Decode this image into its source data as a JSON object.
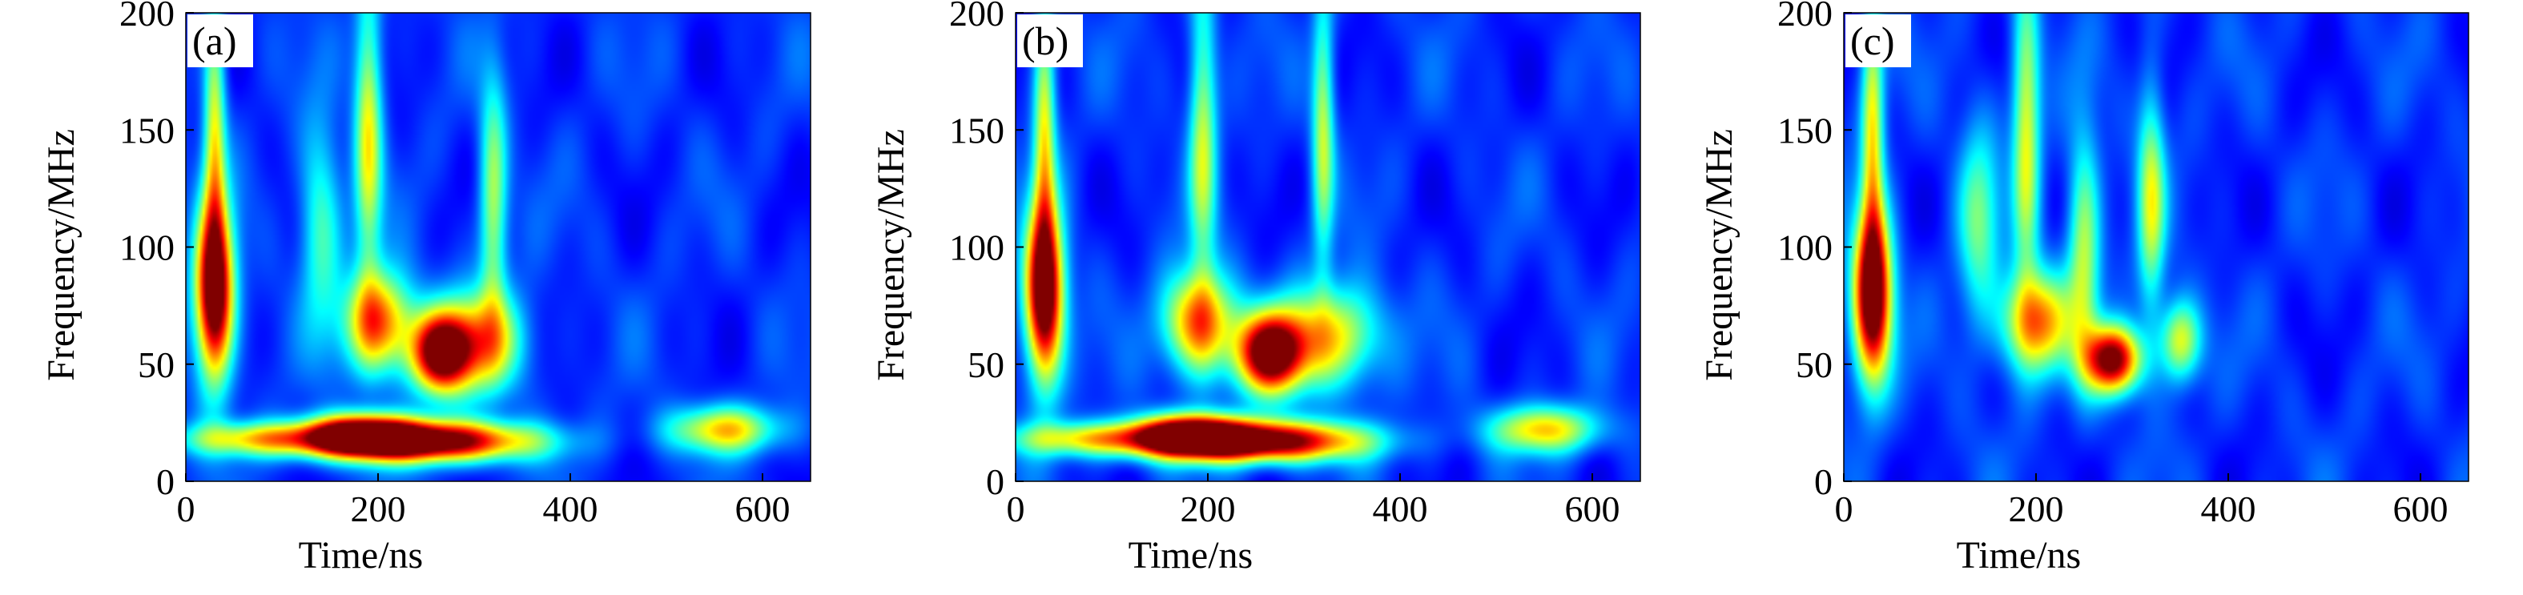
{
  "chart_data": [
    {
      "type": "heatmap",
      "panel_label": "(a)",
      "xlabel": "Time/ns",
      "ylabel": "Frequency/MHz",
      "xlim": [
        0,
        650
      ],
      "ylim": [
        0,
        200
      ],
      "xticks": [
        0,
        200,
        400,
        600
      ],
      "yticks": [
        0,
        50,
        100,
        150,
        200
      ],
      "colormap": "jet",
      "features": [
        {
          "t": 30,
          "f": 80,
          "level": 1.0,
          "dt": 14,
          "df": 26
        },
        {
          "t": 30,
          "f": 150,
          "level": 0.45,
          "dt": 8,
          "df": 40
        },
        {
          "t": 250,
          "f": 17,
          "level": 1.0,
          "dt": 75,
          "df": 6
        },
        {
          "t": 180,
          "f": 20,
          "level": 0.75,
          "dt": 40,
          "df": 6
        },
        {
          "t": 80,
          "f": 18,
          "level": 0.45,
          "dt": 60,
          "df": 5
        },
        {
          "t": 265,
          "f": 55,
          "level": 0.9,
          "dt": 22,
          "df": 12
        },
        {
          "t": 200,
          "f": 68,
          "level": 0.65,
          "dt": 25,
          "df": 15
        },
        {
          "t": 190,
          "f": 150,
          "level": 0.45,
          "dt": 10,
          "df": 45
        },
        {
          "t": 320,
          "f": 120,
          "level": 0.4,
          "dt": 10,
          "df": 35
        },
        {
          "t": 560,
          "f": 22,
          "level": 0.5,
          "dt": 40,
          "df": 7
        },
        {
          "t": 140,
          "f": 110,
          "level": 0.3,
          "dt": 15,
          "df": 30
        },
        {
          "t": 310,
          "f": 60,
          "level": 0.5,
          "dt": 30,
          "df": 15
        }
      ]
    },
    {
      "type": "heatmap",
      "panel_label": "(b)",
      "xlabel": "Time/ns",
      "ylabel": "Frequency/MHz",
      "xlim": [
        0,
        650
      ],
      "ylim": [
        0,
        200
      ],
      "xticks": [
        0,
        200,
        400,
        600
      ],
      "yticks": [
        0,
        50,
        100,
        150,
        200
      ],
      "colormap": "jet",
      "features": [
        {
          "t": 30,
          "f": 80,
          "level": 1.0,
          "dt": 14,
          "df": 26
        },
        {
          "t": 30,
          "f": 150,
          "level": 0.45,
          "dt": 8,
          "df": 40
        },
        {
          "t": 250,
          "f": 17,
          "level": 1.0,
          "dt": 75,
          "df": 6
        },
        {
          "t": 180,
          "f": 20,
          "level": 0.75,
          "dt": 40,
          "df": 6
        },
        {
          "t": 80,
          "f": 18,
          "level": 0.45,
          "dt": 60,
          "df": 5
        },
        {
          "t": 265,
          "f": 55,
          "level": 0.95,
          "dt": 25,
          "df": 12
        },
        {
          "t": 190,
          "f": 68,
          "level": 0.65,
          "dt": 25,
          "df": 15
        },
        {
          "t": 195,
          "f": 150,
          "level": 0.4,
          "dt": 10,
          "df": 45
        },
        {
          "t": 320,
          "f": 150,
          "level": 0.4,
          "dt": 8,
          "df": 40
        },
        {
          "t": 550,
          "f": 22,
          "level": 0.5,
          "dt": 40,
          "df": 7
        },
        {
          "t": 330,
          "f": 62,
          "level": 0.5,
          "dt": 35,
          "df": 15
        }
      ]
    },
    {
      "type": "heatmap",
      "panel_label": "(c)",
      "xlabel": "Time/ns",
      "ylabel": "Frequency/MHz",
      "xlim": [
        0,
        650
      ],
      "ylim": [
        0,
        200
      ],
      "xticks": [
        0,
        200,
        400,
        600
      ],
      "yticks": [
        0,
        50,
        100,
        150,
        200
      ],
      "colormap": "jet",
      "features": [
        {
          "t": 30,
          "f": 80,
          "level": 1.0,
          "dt": 14,
          "df": 26
        },
        {
          "t": 30,
          "f": 150,
          "level": 0.45,
          "dt": 8,
          "df": 40
        },
        {
          "t": 280,
          "f": 52,
          "level": 0.9,
          "dt": 20,
          "df": 10
        },
        {
          "t": 200,
          "f": 68,
          "level": 0.6,
          "dt": 25,
          "df": 15
        },
        {
          "t": 190,
          "f": 150,
          "level": 0.45,
          "dt": 10,
          "df": 45
        },
        {
          "t": 250,
          "f": 100,
          "level": 0.4,
          "dt": 12,
          "df": 35
        },
        {
          "t": 320,
          "f": 120,
          "level": 0.4,
          "dt": 10,
          "df": 35
        },
        {
          "t": 350,
          "f": 60,
          "level": 0.45,
          "dt": 15,
          "df": 12
        },
        {
          "t": 140,
          "f": 110,
          "level": 0.3,
          "dt": 15,
          "df": 30
        }
      ]
    }
  ]
}
